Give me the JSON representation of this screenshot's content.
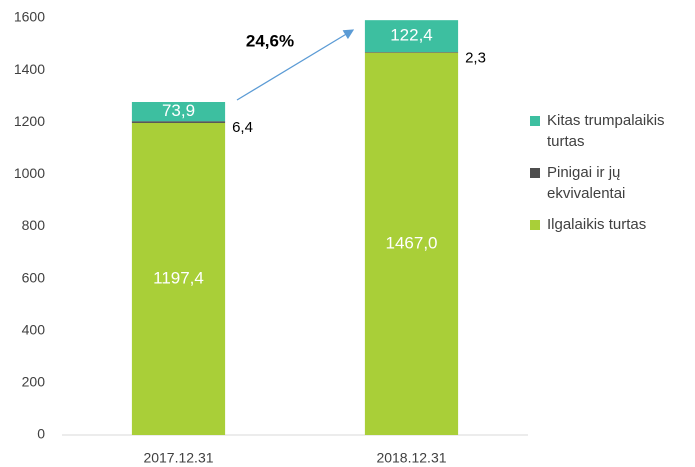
{
  "chart_data": {
    "type": "stacked_bar",
    "categories": [
      "2017.12.31",
      "2018.12.31"
    ],
    "series": [
      {
        "name": "Ilgalaikis turtas",
        "color": "#a9cf38",
        "values": [
          1197.4,
          1467.0
        ],
        "value_labels": [
          "1197,4",
          "1467,0"
        ]
      },
      {
        "name": "Pinigai ir jų ekvivalentai",
        "color": "#4d4d4d",
        "values": [
          6.4,
          2.3
        ],
        "value_labels": [
          "6,4",
          "2,3"
        ]
      },
      {
        "name": "Kitas trumpalaikis turtas",
        "color": "#3dbfa0",
        "values": [
          73.9,
          122.4
        ],
        "value_labels": [
          "73,9",
          "122,4"
        ]
      }
    ],
    "annotation": "24,6%",
    "ylim": [
      0,
      1600
    ],
    "yticks": [
      0,
      200,
      400,
      600,
      800,
      1000,
      1200,
      1400,
      1600
    ],
    "grid": false,
    "legend": "right"
  }
}
